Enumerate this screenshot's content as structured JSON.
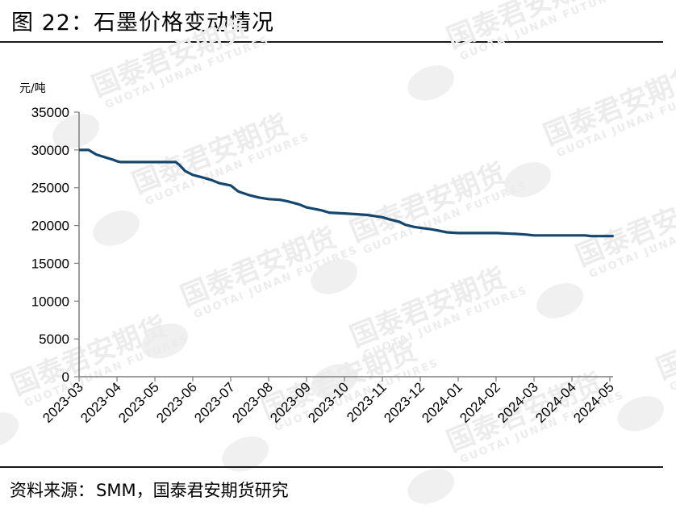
{
  "figure": {
    "title": "图 22：石墨价格变动情况",
    "source_label": "资料来源：",
    "source_text": "SMM，国泰君安期货研究"
  },
  "watermark": {
    "text": "国泰君安期货",
    "subtext": "GUOTAI JUNAN FUTURES"
  },
  "colors": {
    "line": "#14466e",
    "axis": "#7f7f7f",
    "watermark": "#ececec"
  },
  "chart_data": {
    "type": "line",
    "title": "",
    "xlabel": "",
    "ylabel": "元/吨",
    "ylim": [
      0,
      35000
    ],
    "yticks": [
      0,
      5000,
      10000,
      15000,
      20000,
      25000,
      30000,
      35000
    ],
    "categories": [
      "2023-03",
      "2023-04",
      "2023-05",
      "2023-06",
      "2023-07",
      "2023-08",
      "2023-09",
      "2023-10",
      "2023-11",
      "2023-12",
      "2024-01",
      "2024-02",
      "2024-03",
      "2024-04",
      "2024-05"
    ],
    "grid": false,
    "legend": "none",
    "series": [
      {
        "name": "",
        "x": [
          0,
          0.25,
          0.45,
          0.7,
          0.9,
          1.0,
          1.1,
          1.5,
          2.0,
          2.3,
          2.55,
          2.65,
          2.8,
          3.0,
          3.3,
          3.5,
          3.7,
          4.0,
          4.2,
          4.5,
          4.75,
          5.0,
          5.3,
          5.5,
          5.8,
          6.0,
          6.4,
          6.6,
          7.0,
          7.3,
          7.6,
          8.0,
          8.2,
          8.45,
          8.6,
          8.85,
          9.0,
          9.3,
          9.5,
          9.7,
          10.0,
          10.4,
          11.0,
          11.5,
          11.8,
          12.0,
          12.2,
          12.5,
          13.0,
          13.35,
          13.5,
          14.0,
          14.1
        ],
        "y": [
          30000,
          30000,
          29400,
          29000,
          28700,
          28500,
          28400,
          28400,
          28400,
          28400,
          28400,
          28000,
          27200,
          26700,
          26300,
          26000,
          25600,
          25300,
          24500,
          24000,
          23700,
          23500,
          23400,
          23200,
          22800,
          22400,
          22000,
          21700,
          21600,
          21500,
          21400,
          21100,
          20800,
          20500,
          20100,
          19800,
          19700,
          19500,
          19300,
          19100,
          19000,
          19000,
          19000,
          18900,
          18800,
          18700,
          18700,
          18700,
          18700,
          18700,
          18600,
          18600,
          18600
        ]
      }
    ]
  }
}
